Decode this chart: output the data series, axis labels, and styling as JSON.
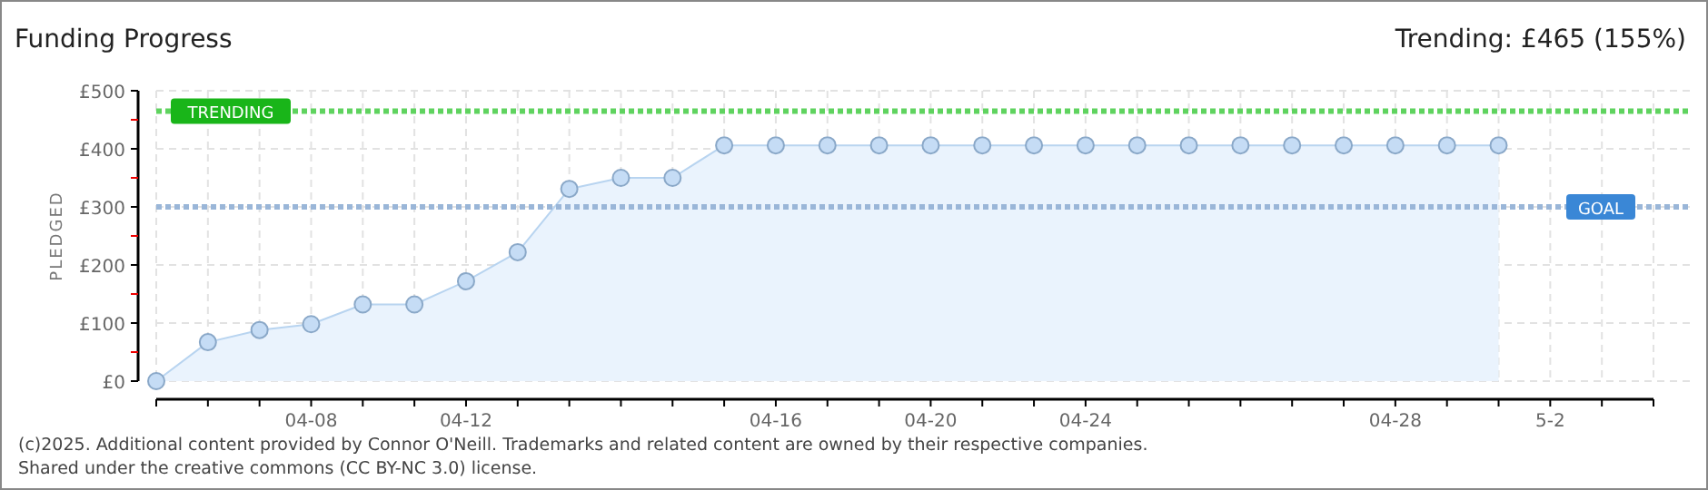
{
  "chart_data": {
    "type": "area",
    "title": "Funding Progress",
    "ylabel": "PLEDGED",
    "annotations": [
      "Trending: £465 (155%)",
      "(c)2025. Additional content provided by Connor O'Neill. Trademarks and related content are owned by their respective companies.",
      "Shared under the creative commons (CC BY-NC 3.0) license."
    ],
    "categories": [
      null,
      null,
      null,
      "04-08",
      null,
      null,
      "04-12",
      null,
      null,
      null,
      null,
      null,
      "04-16",
      null,
      null,
      "04-20",
      null,
      null,
      "04-24",
      null,
      null,
      null,
      null,
      null,
      "04-28",
      null,
      null,
      "5-2",
      null,
      null
    ],
    "series": [
      {
        "color": "#b8d4f0",
        "values": [
          0,
          67,
          88,
          98,
          132,
          132,
          172,
          222,
          331,
          350,
          350,
          406,
          406,
          406,
          406,
          406,
          406,
          406,
          406,
          406,
          406,
          406,
          406,
          406,
          406,
          406,
          406,
          null,
          null,
          null
        ]
      }
    ],
    "ylim": [
      0,
      500
    ],
    "yticks": [
      {
        "value": 0,
        "label": "£0"
      },
      {
        "value": 50,
        "label": null
      },
      {
        "value": 100,
        "label": "£100"
      },
      {
        "value": 150,
        "label": null
      },
      {
        "value": 200,
        "label": "£200"
      },
      {
        "value": 250,
        "label": null
      },
      {
        "value": 300,
        "label": "£300"
      },
      {
        "value": 350,
        "label": null
      },
      {
        "value": 400,
        "label": "£400"
      },
      {
        "value": 450,
        "label": null
      },
      {
        "value": 500,
        "label": "£500"
      }
    ],
    "ref_lines": [
      {
        "axis": "y",
        "value": 465,
        "label": "TRENDING",
        "color": "#5fd35f",
        "line_style": "dotted"
      },
      {
        "axis": "y",
        "value": 300,
        "label": "GOAL",
        "color": "#9ab6d8",
        "line_style": "dotted"
      }
    ],
    "grid": true,
    "marker": "circle"
  }
}
